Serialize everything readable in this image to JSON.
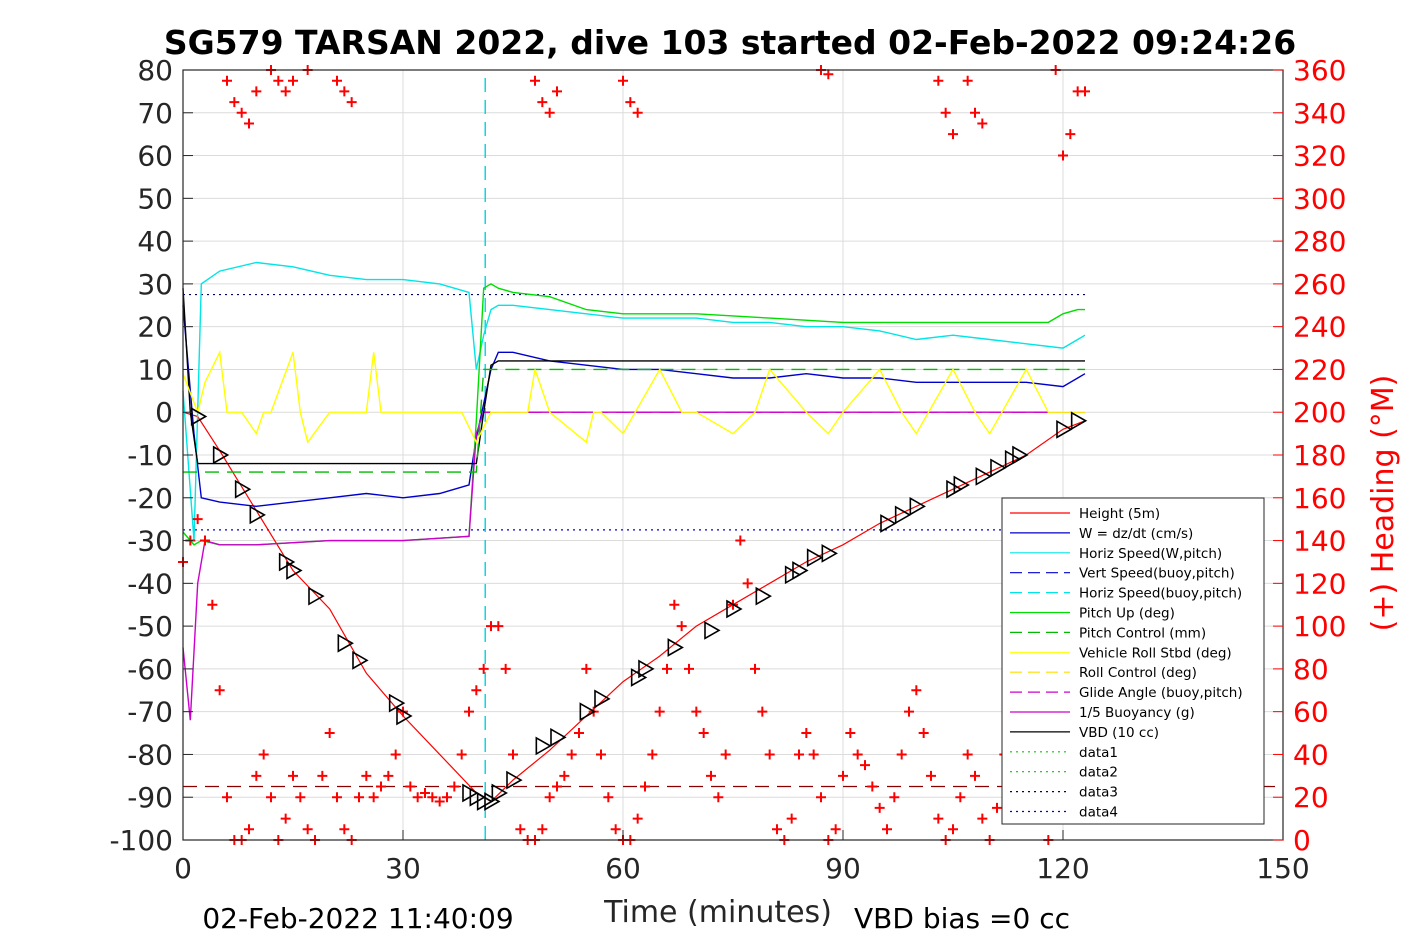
{
  "chart_data": {
    "type": "line",
    "title": "SG579 TARSAN 2022, dive 103 started 02-Feb-2022 09:24:26",
    "xlabel": "Time (minutes)",
    "ylabel_right": "(+) Heading (°M)",
    "footer_left": "02-Feb-2022 11:40:09",
    "footer_right": "VBD bias =0 cc",
    "xlim": [
      0,
      150
    ],
    "ylim_left": [
      -100,
      80
    ],
    "ylim_right": [
      0,
      360
    ],
    "x_ticks": [
      0,
      30,
      60,
      90,
      120,
      150
    ],
    "y_ticks_left": [
      80,
      70,
      60,
      50,
      40,
      30,
      20,
      10,
      0,
      -10,
      -20,
      -30,
      -40,
      -50,
      -60,
      -70,
      -80,
      -90,
      -100
    ],
    "y_ticks_right": [
      360,
      340,
      320,
      300,
      280,
      260,
      240,
      220,
      200,
      180,
      160,
      140,
      120,
      100,
      80,
      60,
      40,
      20,
      0
    ],
    "grid": true,
    "legend_placement": "bottom-right",
    "colors": {
      "height": "#ff0000",
      "w": "#0000cc",
      "horiz_speed": "#00e5e5",
      "vert_speed_buoy": "#0000cc",
      "horiz_speed_buoy": "#00e5e5",
      "pitch_up": "#00dd00",
      "pitch_control": "#00bb00",
      "roll": "#ffff00",
      "roll_control": "#ffdd00",
      "glide_angle": "#cc00cc",
      "buoyancy": "#cc00cc",
      "vbd": "#000000",
      "heading": "#ff0000",
      "markers": "#000000"
    },
    "legend": [
      {
        "label": "Height (5m)",
        "color": "#ff0000",
        "style": "solid"
      },
      {
        "label": "W = dz/dt (cm/s)",
        "color": "#0000cc",
        "style": "solid"
      },
      {
        "label": "Horiz Speed(W,pitch)",
        "color": "#00e5e5",
        "style": "solid"
      },
      {
        "label": "Vert Speed(buoy,pitch)",
        "color": "#0000cc",
        "style": "dashed"
      },
      {
        "label": "Horiz Speed(buoy,pitch)",
        "color": "#00e5e5",
        "style": "dashed"
      },
      {
        "label": "Pitch Up (deg)",
        "color": "#00dd00",
        "style": "solid"
      },
      {
        "label": "Pitch Control (mm)",
        "color": "#00bb00",
        "style": "dashed"
      },
      {
        "label": "Vehicle Roll Stbd (deg)",
        "color": "#ffff00",
        "style": "solid"
      },
      {
        "label": "Roll Control (deg)",
        "color": "#ffdd00",
        "style": "dashed"
      },
      {
        "label": "Glide Angle (buoy,pitch)",
        "color": "#cc00cc",
        "style": "dashed"
      },
      {
        "label": "1/5 Buoyancy (g)",
        "color": "#cc00cc",
        "style": "solid"
      },
      {
        "label": "VBD (10 cc)",
        "color": "#000000",
        "style": "solid"
      },
      {
        "label": "data1",
        "color": "#00cc00",
        "style": "dotted"
      },
      {
        "label": "data2",
        "color": "#00cc00",
        "style": "dotted"
      },
      {
        "label": "data3",
        "color": "#000066",
        "style": "dotted"
      },
      {
        "label": "data4",
        "color": "#0000cc",
        "style": "dotted"
      }
    ],
    "series": [
      {
        "key": "height",
        "axis": "left",
        "x": [
          0,
          2,
          5,
          10,
          15,
          20,
          25,
          30,
          35,
          40,
          42,
          45,
          50,
          55,
          60,
          65,
          70,
          75,
          80,
          85,
          90,
          95,
          100,
          105,
          110,
          115,
          120,
          123
        ],
        "y": [
          0,
          -1,
          -9,
          -23,
          -37,
          -46,
          -61,
          -71,
          -80,
          -89,
          -91,
          -86,
          -79,
          -71,
          -63,
          -57,
          -50,
          -45,
          -40,
          -35,
          -31,
          -26,
          -22,
          -18,
          -14,
          -10,
          -4,
          -2
        ]
      },
      {
        "key": "w",
        "axis": "left",
        "x": [
          0,
          1.5,
          2.5,
          5,
          10,
          15,
          20,
          25,
          30,
          35,
          39,
          40,
          41,
          42,
          43,
          45,
          50,
          55,
          60,
          65,
          70,
          75,
          80,
          85,
          90,
          95,
          100,
          105,
          110,
          115,
          120,
          122,
          123
        ],
        "y": [
          25,
          -5,
          -20,
          -21,
          -22,
          -21,
          -20,
          -19,
          -20,
          -19,
          -17,
          -6,
          2,
          10,
          14,
          14,
          12,
          11,
          10,
          10,
          9,
          8,
          8,
          9,
          8,
          8,
          7,
          7,
          7,
          7,
          6,
          8,
          9
        ]
      },
      {
        "key": "horiz_speed",
        "axis": "left",
        "x": [
          0,
          1.5,
          2.5,
          5,
          10,
          15,
          20,
          25,
          30,
          35,
          39,
          40,
          41,
          42,
          43,
          45,
          50,
          55,
          60,
          65,
          70,
          75,
          80,
          85,
          90,
          95,
          100,
          105,
          110,
          115,
          120,
          122,
          123
        ],
        "y": [
          5,
          -30,
          30,
          33,
          35,
          34,
          32,
          31,
          31,
          30,
          28,
          10,
          18,
          24,
          25,
          25,
          24,
          23,
          22,
          22,
          22,
          21,
          21,
          20,
          20,
          19,
          17,
          18,
          17,
          16,
          15,
          17,
          18
        ]
      },
      {
        "key": "pitch_up",
        "axis": "left",
        "x": [
          0,
          1.5,
          2.5,
          5,
          10,
          20,
          30,
          39,
          40,
          41,
          42,
          43,
          45,
          50,
          55,
          60,
          70,
          80,
          90,
          100,
          110,
          118,
          120,
          122,
          123
        ],
        "y": [
          -28,
          -31,
          -30,
          -31,
          -31,
          -30,
          -30,
          -29,
          -2,
          29,
          30,
          29,
          28,
          27,
          24,
          23,
          23,
          22,
          21,
          21,
          21,
          21,
          23,
          24,
          24
        ]
      },
      {
        "key": "buoyancy",
        "axis": "left",
        "x": [
          0,
          1,
          2,
          3,
          5,
          10,
          20,
          30,
          39,
          40,
          41,
          42,
          123
        ],
        "y": [
          -55,
          -72,
          -40,
          -30,
          -31,
          -31,
          -30,
          -30,
          -29,
          -5,
          0,
          0,
          0
        ]
      },
      {
        "key": "vbd",
        "axis": "left",
        "x": [
          0,
          1,
          2,
          5,
          40,
          41,
          42,
          43,
          123
        ],
        "y": [
          29,
          0,
          -12,
          -12,
          -12,
          0,
          11,
          12,
          12
        ]
      },
      {
        "key": "pitch_control",
        "axis": "left",
        "x": [
          0,
          2,
          40,
          41,
          123
        ],
        "y": [
          -14,
          -14,
          -14,
          10,
          10
        ]
      },
      {
        "key": "roll",
        "axis": "left",
        "x": [
          0,
          2,
          3,
          5,
          6,
          8,
          10,
          11,
          12,
          15,
          16,
          17,
          20,
          25,
          26,
          27,
          30,
          35,
          38,
          40,
          42,
          45,
          47,
          48,
          50,
          55,
          56,
          57,
          60,
          65,
          68,
          70,
          75,
          78,
          80,
          85,
          88,
          90,
          95,
          98,
          100,
          105,
          108,
          110,
          115,
          118,
          120,
          123
        ],
        "y": [
          9,
          0,
          7,
          14,
          0,
          0,
          -5,
          0,
          0,
          14,
          0,
          -7,
          0,
          0,
          14,
          0,
          0,
          0,
          0,
          -7,
          0,
          0,
          0,
          10,
          0,
          -7,
          0,
          0,
          -5,
          10,
          0,
          0,
          -5,
          0,
          10,
          0,
          -5,
          0,
          10,
          0,
          -5,
          10,
          0,
          -5,
          10,
          0,
          0,
          0
        ]
      },
      {
        "key": "heading_top",
        "axis": "right",
        "style": "plus",
        "x": [
          6,
          7,
          8,
          9,
          10,
          12,
          13,
          14,
          15,
          17,
          21,
          22,
          23,
          48,
          49,
          50,
          51,
          60,
          61,
          62,
          87,
          88,
          103,
          104,
          105,
          107,
          108,
          109,
          119,
          120,
          121,
          122,
          123
        ],
        "y": [
          355,
          345,
          340,
          335,
          350,
          360,
          355,
          350,
          355,
          360,
          355,
          350,
          345,
          355,
          345,
          340,
          350,
          355,
          345,
          340,
          360,
          358,
          355,
          340,
          330,
          355,
          340,
          335,
          360,
          320,
          330,
          350,
          350
        ]
      },
      {
        "key": "heading_bottom",
        "axis": "right",
        "style": "plus",
        "x": [
          0,
          1,
          2,
          3,
          4,
          5,
          6,
          7,
          8,
          9,
          10,
          11,
          12,
          13,
          14,
          15,
          16,
          17,
          18,
          19,
          20,
          21,
          22,
          23,
          24,
          25,
          26,
          27,
          28,
          29,
          30,
          31,
          32,
          33,
          34,
          35,
          36,
          37,
          38,
          39,
          40,
          41,
          42,
          43,
          44,
          45,
          46,
          47,
          48,
          49,
          50,
          51,
          52,
          53,
          54,
          55,
          56,
          57,
          58,
          59,
          60,
          61,
          62,
          63,
          64,
          65,
          66,
          67,
          68,
          69,
          70,
          71,
          72,
          73,
          74,
          75,
          76,
          77,
          78,
          79,
          80,
          81,
          82,
          83,
          84,
          85,
          86,
          87,
          88,
          89,
          90,
          91,
          92,
          93,
          94,
          95,
          96,
          97,
          98,
          99,
          100,
          101,
          102,
          103,
          104,
          105,
          106,
          107,
          108,
          109,
          110,
          111,
          112,
          113,
          114,
          115,
          116,
          117,
          118,
          119,
          120
        ],
        "y": [
          130,
          140,
          150,
          140,
          110,
          70,
          20,
          0,
          0,
          5,
          30,
          40,
          20,
          0,
          10,
          30,
          20,
          5,
          0,
          30,
          50,
          20,
          5,
          0,
          20,
          30,
          20,
          25,
          30,
          40,
          60,
          25,
          20,
          22,
          20,
          18,
          20,
          25,
          40,
          60,
          70,
          80,
          100,
          100,
          80,
          40,
          5,
          0,
          0,
          5,
          20,
          25,
          30,
          40,
          50,
          80,
          60,
          40,
          20,
          5,
          0,
          0,
          10,
          25,
          40,
          60,
          80,
          110,
          100,
          80,
          60,
          50,
          30,
          20,
          40,
          110,
          140,
          120,
          80,
          60,
          40,
          5,
          0,
          10,
          40,
          50,
          40,
          20,
          0,
          5,
          30,
          50,
          40,
          35,
          25,
          15,
          5,
          20,
          40,
          60,
          70,
          50,
          30,
          10,
          0,
          5,
          20,
          40,
          30,
          10,
          0,
          15,
          40,
          60,
          70,
          40,
          20,
          10,
          0,
          10,
          20
        ]
      },
      {
        "key": "triangles",
        "axis": "left",
        "style": "triangle",
        "x": [
          2,
          5,
          8,
          10,
          14,
          15,
          18,
          22,
          24,
          29,
          30,
          39,
          40,
          41,
          42,
          43,
          45,
          49,
          51,
          55,
          57,
          62,
          63,
          67,
          72,
          75,
          79,
          83,
          84,
          86,
          88,
          96,
          98,
          100,
          105,
          106,
          109,
          111,
          113,
          114,
          120,
          122
        ],
        "y": [
          -1,
          -10,
          -18,
          -24,
          -35,
          -37,
          -43,
          -54,
          -58,
          -68,
          -71,
          -89,
          -90,
          -91,
          -91,
          -89,
          -86,
          -78,
          -76,
          -70,
          -67,
          -62,
          -60,
          -55,
          -51,
          -46,
          -43,
          -38,
          -37,
          -34,
          -33,
          -26,
          -24,
          -22,
          -18,
          -17,
          -15,
          -13,
          -11,
          -10,
          -4,
          -2
        ]
      }
    ],
    "reference_lines": [
      {
        "key": "data3",
        "axis": "left",
        "y": 27.5,
        "x": [
          0,
          123
        ],
        "color": "#000066",
        "style": "dotted"
      },
      {
        "key": "data4",
        "axis": "left",
        "y": -27.5,
        "x": [
          0,
          123
        ],
        "color": "#0000cc",
        "style": "dotted"
      },
      {
        "key": "depth_ref",
        "axis": "left",
        "y": -87.5,
        "x": [
          0,
          150
        ],
        "color": "#880000",
        "style": "dashed"
      },
      {
        "key": "vert_time_blue",
        "axis": "left",
        "x_at": 41.2,
        "y": [
          -100,
          80
        ],
        "color": "#0000cc",
        "style": "dashed"
      },
      {
        "key": "vert_time_cyan",
        "axis": "left",
        "x_at": 41.2,
        "y": [
          -100,
          80
        ],
        "color": "#00e5e5",
        "style": "dashed"
      },
      {
        "key": "zero_magenta",
        "axis": "left",
        "y": 0,
        "x": [
          41,
          123
        ],
        "color": "#cc00cc",
        "style": "dashed"
      }
    ]
  }
}
